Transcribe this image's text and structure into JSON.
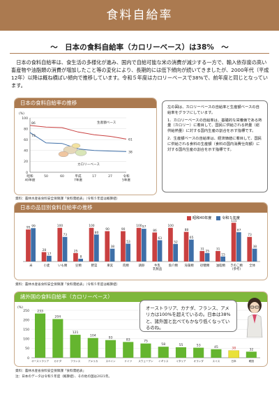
{
  "title": "食料自給率",
  "subtitle": "〜　日本の食料自給率（カロリーベース）は38%　〜",
  "intro": "日本の食料自給率は、食生活の多様化が進み、国内で自給可能な米の消費が減少する一方で、輸入依存度の高い畜産物や油脂類の消費が増加したこと等の変化により、長期的には低下傾向が続いてきましたが、2000年代（平成12年）以降は概ね横ばい傾向で推移しています。令和５年度はカロリーベースで38%で、前年度と同じとなっています。",
  "colors": {
    "brown": "#ab7a50",
    "green": "#7fb73b",
    "red": "#c94040",
    "blue": "#3e6fa8",
    "bar_green": "#65b52f",
    "bar_yellow": "#e9e13a"
  },
  "trend": {
    "heading": "日本の食料自給率の推移",
    "y_unit": "(%)",
    "production_label": "生産額ベース",
    "calorie_label": "カロリーベース",
    "start_prod": "86",
    "start_cal": "73",
    "end_prod": "61",
    "end_cal": "38",
    "source": "資料：農林水産省食料安全保障課「食料需給表」（令和５年度は概算値）",
    "note": {
      "intro": "左の図は、カロリーベースの自給率と生産額ベースの自給率をグラフにしています。",
      "item1": "1．カロリーベースの自給率は、基礎的な栄養価である熱量（カロリー）に着目して、国民に供給される熱量（総供給熱量）に対する国内生産の割合を示す指標です。",
      "item2": "2．生産額ベースの自給率は、経済価値に着目して、国民に供給される食料の生産額（食料の国内消費仕向額）に対する国内生産の割合を示す指標です。"
    }
  },
  "chart_data": [
    {
      "type": "line",
      "x": [
        "昭和40年度",
        "50",
        "60",
        "平成7年度",
        "17",
        "27",
        "令和5年度"
      ],
      "xlabels": [
        "昭和\n40年度",
        "50",
        "60",
        "平成\n7年度",
        "17",
        "27",
        "令和\n5年度"
      ],
      "yticks": [
        0,
        20,
        40,
        60,
        80,
        100
      ],
      "ylim": [
        0,
        100
      ],
      "series": [
        {
          "name": "生産額ベース",
          "values": [
            86,
            83,
            82,
            74,
            69,
            66,
            61
          ]
        },
        {
          "name": "カロリーベース",
          "values": [
            73,
            54,
            53,
            43,
            40,
            39,
            38
          ]
        }
      ]
    },
    {
      "type": "bar",
      "categories": [
        "米",
        "小麦",
        "いも類",
        "豆類",
        "野菜",
        "果実",
        "肉類",
        "鶏卵",
        "牛乳・乳製品",
        "魚介類",
        "海藻類",
        "砂糖類",
        "油脂類",
        "きのこ類",
        "全体"
      ],
      "xlabels": [
        "米",
        "小麦",
        "いも類",
        "豆類",
        "野菜",
        "果実",
        "肉類",
        "鶏卵",
        "牛乳\n乳製品",
        "魚介類",
        "海藻類",
        "砂糖類",
        "油脂類",
        "きのこ類\n(参考)",
        "全体"
      ],
      "ylim": [
        0,
        120
      ],
      "series": [
        {
          "name": "昭和40年度",
          "values": [
            95,
            28,
            100,
            25,
            100,
            90,
            90,
            100,
            86,
            100,
            88,
            31,
            31,
            115,
            73
          ]
        },
        {
          "name": "令和5年度",
          "values": [
            99,
            17,
            73,
            8,
            80,
            38,
            53,
            97,
            63,
            52,
            65,
            25,
            15,
            87,
            38
          ]
        }
      ]
    },
    {
      "type": "bar",
      "categories": [
        "オーストラリア",
        "カナダ",
        "フランス",
        "アメリカ",
        "スペイン",
        "ドイツ",
        "スウェーデン",
        "イギリス",
        "イタリア",
        "オランダ",
        "スイス",
        "日本",
        "韓国"
      ],
      "values": [
        233,
        204,
        121,
        104,
        93,
        83,
        75,
        58,
        55,
        53,
        45,
        38,
        32
      ],
      "yticks": [
        0,
        50,
        100,
        150,
        200,
        250
      ],
      "ylim": [
        0,
        250
      ],
      "y_unit": "(%)"
    }
  ],
  "items": {
    "heading": "日本の品目別食料自給率の推移",
    "legend_1965": "昭和40年度",
    "legend_2023": "令和５年度",
    "source": "資料：農林水産省食料安全保障課「食料需給表」（令和５年度は概算値）"
  },
  "world": {
    "heading": "諸外国の食料自給率（カロリーベース）",
    "speech": "オーストラリア、カナダ、フランス、アメリカは100%を超えているの。日本は38%と、諸外国と比べてもかなり低くなっているのね。",
    "source1": "資料：農林水産省食料安全保障課「食料需給表」",
    "source2": "注：日本のデータは令和５年度（概算値）、その他の国は2021年。"
  }
}
